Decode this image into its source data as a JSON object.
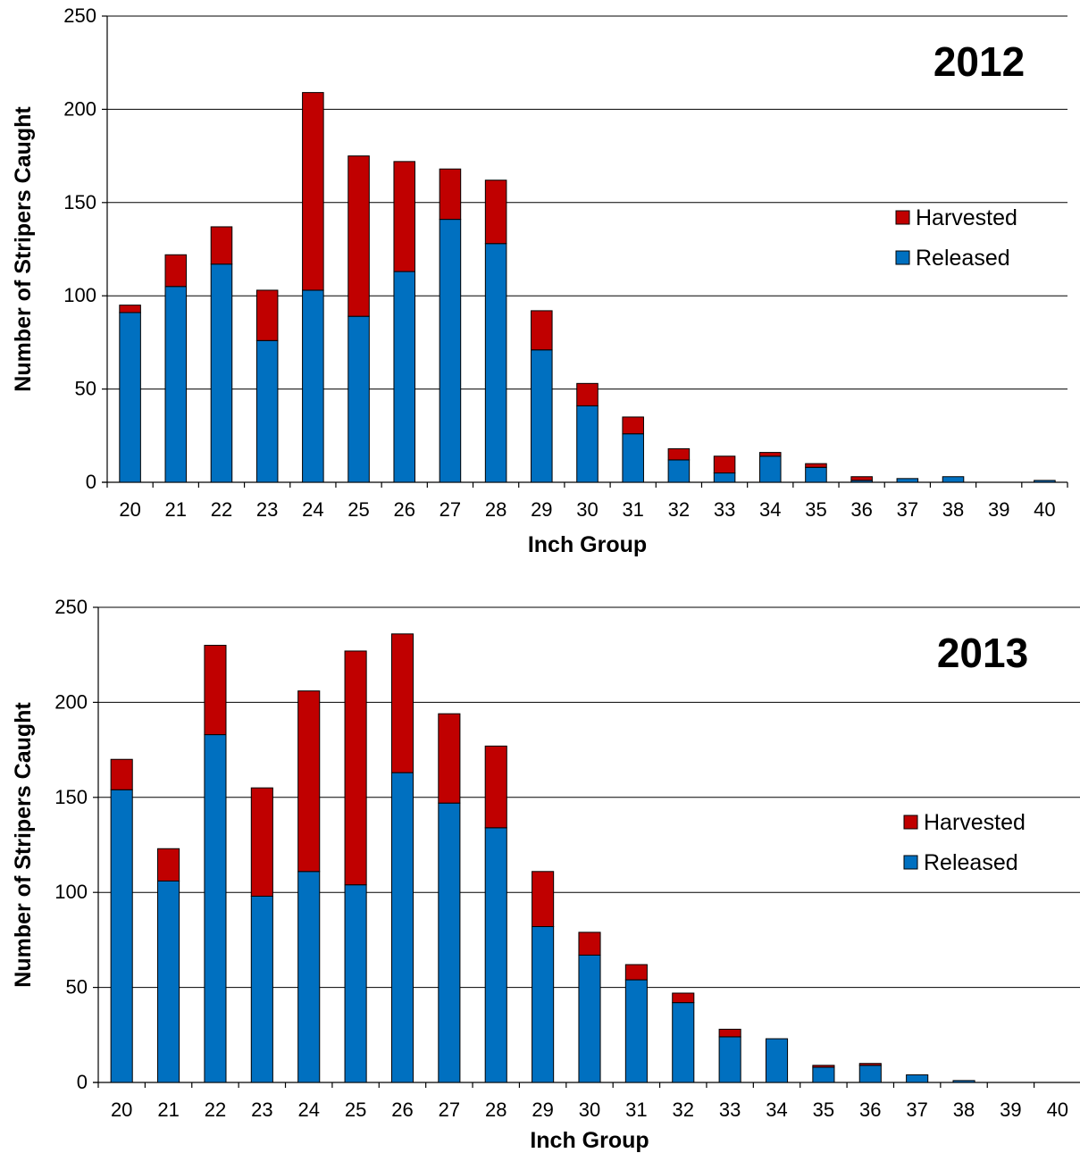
{
  "colors": {
    "harvested": "#c00000",
    "released": "#0070c0",
    "grid": "#000000"
  },
  "chart_data": [
    {
      "type": "bar",
      "stacked": true,
      "title": "2012",
      "xlabel": "Inch Group",
      "ylabel": "Number of Stripers Caught",
      "ylim": [
        0,
        250
      ],
      "yticks": [
        0,
        50,
        100,
        150,
        200,
        250
      ],
      "grid": true,
      "legend": "right",
      "legend_entries": [
        "Harvested",
        "Released"
      ],
      "categories": [
        "20",
        "21",
        "22",
        "23",
        "24",
        "25",
        "26",
        "27",
        "28",
        "29",
        "30",
        "31",
        "32",
        "33",
        "34",
        "35",
        "36",
        "37",
        "38",
        "39",
        "40"
      ],
      "series": [
        {
          "name": "Released",
          "values": [
            91,
            105,
            117,
            76,
            103,
            89,
            113,
            141,
            128,
            71,
            41,
            26,
            12,
            5,
            14,
            8,
            1,
            2,
            3,
            0,
            1
          ]
        },
        {
          "name": "Harvested",
          "values": [
            4,
            17,
            20,
            27,
            106,
            86,
            59,
            27,
            34,
            21,
            12,
            9,
            6,
            9,
            2,
            2,
            2,
            0,
            0,
            0,
            0
          ]
        }
      ]
    },
    {
      "type": "bar",
      "stacked": true,
      "title": "2013",
      "xlabel": "Inch Group",
      "ylabel": "Number of Stripers Caught",
      "ylim": [
        0,
        250
      ],
      "yticks": [
        0,
        50,
        100,
        150,
        200,
        250
      ],
      "grid": true,
      "legend": "right",
      "legend_entries": [
        "Harvested",
        "Released"
      ],
      "categories": [
        "20",
        "21",
        "22",
        "23",
        "24",
        "25",
        "26",
        "27",
        "28",
        "29",
        "30",
        "31",
        "32",
        "33",
        "34",
        "35",
        "36",
        "37",
        "38",
        "39",
        "40"
      ],
      "series": [
        {
          "name": "Released",
          "values": [
            154,
            106,
            183,
            98,
            111,
            104,
            163,
            147,
            134,
            82,
            67,
            54,
            42,
            24,
            23,
            8,
            9,
            4,
            1,
            0,
            0
          ]
        },
        {
          "name": "Harvested",
          "values": [
            16,
            17,
            47,
            57,
            95,
            123,
            73,
            47,
            43,
            29,
            12,
            8,
            5,
            4,
            0,
            1,
            1,
            0,
            0,
            0,
            0
          ]
        }
      ]
    }
  ]
}
